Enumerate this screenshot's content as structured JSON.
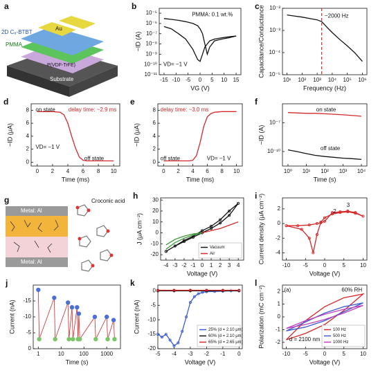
{
  "diagram_a": {
    "label": "a",
    "layers": [
      "2D C₈-BTBT",
      "Au",
      "PMMA",
      "P(VDF-TrFE)",
      "Substrate"
    ]
  },
  "diagram_g": {
    "label": "g",
    "electrodes": [
      "Metal: Al",
      "Metal: Al"
    ],
    "molecule": "Croconic acid"
  },
  "chart_data": [
    {
      "type": "line",
      "label": "b",
      "xlabel": "VG (V)",
      "ylabel": "−ID (A)",
      "ylog": true,
      "xlim": [
        -17,
        17
      ],
      "xticks": [
        -15,
        -10,
        -5,
        0,
        5,
        10,
        15
      ],
      "ylim": [
        1e-11,
        3e-05
      ],
      "yticks": [
        {
          "value": 1e-11,
          "label": "10⁻¹¹"
        },
        {
          "value": 1e-10,
          "label": "10⁻¹⁰"
        },
        {
          "value": 1e-09,
          "label": "10⁻⁹"
        },
        {
          "value": 1e-08,
          "label": "10⁻⁸"
        },
        {
          "value": 1e-07,
          "label": "10⁻⁷"
        },
        {
          "value": 1e-06,
          "label": "10⁻⁶"
        },
        {
          "value": 1e-05,
          "label": "10⁻⁵"
        }
      ],
      "series": [
        {
          "color": "#111111",
          "x": [
            -15,
            -12,
            -9,
            -6,
            -3,
            -1,
            0,
            1,
            2,
            3,
            4,
            6,
            9,
            12,
            15
          ],
          "values": [
            3e-06,
            2.5e-06,
            2e-06,
            1.5e-06,
            1e-06,
            6e-07,
            3e-07,
            1e-07,
            1e-08,
            1e-09,
            5e-09,
            2e-08,
            3e-08,
            4e-08,
            6e-08
          ]
        },
        {
          "color": "#111111",
          "x": [
            -15,
            -12,
            -9,
            -6,
            -3,
            -1,
            0,
            1,
            2,
            3,
            4,
            6,
            9,
            12,
            15
          ],
          "values": [
            5e-07,
            3e-07,
            1e-07,
            3e-08,
            3e-09,
            3e-10,
            2e-10,
            1e-09,
            5e-09,
            1e-08,
            2e-08,
            3e-08,
            4e-08,
            5e-08,
            6e-08
          ]
        }
      ],
      "annotations": [
        {
          "text": "PMMA: 0.1 wt.%",
          "color": "#111111"
        },
        {
          "text": "VD= −1 V",
          "color": "#111111"
        }
      ]
    },
    {
      "type": "line",
      "label": "c",
      "xlabel": "Frequency (Hz)",
      "ylabel": "Capacitance/Conductance",
      "xlog": true,
      "ylog": true,
      "xlim": [
        5,
        2000000.0
      ],
      "ylim": [
        1e-05,
        0.01
      ],
      "xticks": [
        {
          "value": 10,
          "label": "10¹"
        },
        {
          "value": 100,
          "label": "10²"
        },
        {
          "value": 1000,
          "label": "10³"
        },
        {
          "value": 10000,
          "label": "10⁴"
        },
        {
          "value": 100000,
          "label": "10⁵"
        },
        {
          "value": 1000000,
          "label": "10⁶"
        }
      ],
      "yticks": [
        {
          "value": 1e-05,
          "label": "10⁻⁵"
        },
        {
          "value": 0.0001,
          "label": "10⁻⁴"
        },
        {
          "value": 0.001,
          "label": "10⁻³"
        },
        {
          "value": 0.01,
          "label": "10⁻²"
        }
      ],
      "series": [
        {
          "color": "#111111",
          "x": [
            10,
            30,
            100,
            300,
            1000,
            2000,
            5000,
            10000,
            30000,
            100000,
            300000,
            1000000
          ],
          "values": [
            0.005,
            0.0045,
            0.004,
            0.0035,
            0.003,
            0.0025,
            0.0013,
            0.0008,
            0.0004,
            0.0002,
            0.0001,
            4e-05
          ]
        }
      ],
      "vline": {
        "x": 2000,
        "color": "#d62728"
      },
      "annotations": [
        {
          "text": "~2000 Hz",
          "color": "#111111"
        }
      ]
    },
    {
      "type": "line",
      "label": "d",
      "xlabel": "Time (ms)",
      "ylabel": "−ID (μA)",
      "xlim": [
        -0.8,
        10.8
      ],
      "xticks": [
        0,
        2,
        4,
        6,
        8,
        10
      ],
      "ylim": [
        -0.6,
        9
      ],
      "yticks": [
        0,
        2,
        4,
        6,
        8
      ],
      "series": [
        {
          "color": "#d62728",
          "x": [
            0,
            1,
            2,
            3,
            3.5,
            4,
            4.5,
            5,
            5.5,
            6,
            6.5,
            7,
            8,
            9,
            10
          ],
          "values": [
            7.8,
            7.8,
            7.8,
            7.7,
            7.3,
            6,
            4,
            2.2,
            0.8,
            0.3,
            0.2,
            0.2,
            0.2,
            0.2,
            0.2
          ]
        }
      ],
      "annotations": [
        {
          "text": "on state",
          "color": "#111111"
        },
        {
          "text": "delay time: ~2.9 ms",
          "color": "#d62728"
        },
        {
          "text": "off state",
          "color": "#111111"
        },
        {
          "text": "VD= −1 V",
          "color": "#111111"
        }
      ]
    },
    {
      "type": "line",
      "label": "e",
      "xlabel": "Time (ms)",
      "ylabel": "−ID (μA)",
      "xlim": [
        -0.8,
        10.8
      ],
      "xticks": [
        0,
        2,
        4,
        6,
        8,
        10
      ],
      "ylim": [
        -0.6,
        9
      ],
      "yticks": [
        0,
        2,
        4,
        6,
        8
      ],
      "series": [
        {
          "color": "#d62728",
          "x": [
            0,
            1,
            2,
            3,
            3.5,
            4,
            4.5,
            5,
            5.5,
            6,
            6.5,
            7,
            8,
            9,
            10
          ],
          "values": [
            0.2,
            0.2,
            0.2,
            0.2,
            0.2,
            0.3,
            1,
            3,
            5.5,
            7,
            7.5,
            7.7,
            7.8,
            7.8,
            7.8
          ]
        }
      ],
      "annotations": [
        {
          "text": "delay time: ~3.0 ms",
          "color": "#d62728"
        },
        {
          "text": "off state",
          "color": "#111111"
        },
        {
          "text": "VD= −1 V",
          "color": "#111111"
        }
      ]
    },
    {
      "type": "line",
      "label": "f",
      "xlabel": "Time (s)",
      "ylabel": "−ID (A)",
      "xlog": true,
      "ylog": true,
      "xlim": [
        0.5,
        20000
      ],
      "ylim": [
        3e-12,
        1e-05
      ],
      "xticks": [
        {
          "value": 1,
          "label": "10⁰"
        },
        {
          "value": 10,
          "label": "10¹"
        },
        {
          "value": 100,
          "label": "10²"
        },
        {
          "value": 1000,
          "label": "10³"
        },
        {
          "value": 10000,
          "label": "10⁴"
        }
      ],
      "yticks": [
        {
          "value": 1e-10,
          "label": "10⁻¹⁰"
        },
        {
          "value": 1e-07,
          "label": "10⁻⁷"
        }
      ],
      "series": [
        {
          "color": "#d62728",
          "x": [
            1,
            3,
            10,
            30,
            100,
            300,
            1000,
            3000,
            10000
          ],
          "values": [
            1.2e-06,
            1.1e-06,
            1e-06,
            1e-06,
            9e-07,
            8e-07,
            7e-07,
            6e-07,
            5e-07
          ]
        },
        {
          "color": "#111111",
          "x": [
            1,
            3,
            10,
            30,
            100,
            300,
            1000,
            3000,
            10000
          ],
          "values": [
            1.5e-10,
            1e-10,
            6e-11,
            4e-11,
            3e-11,
            2.5e-11,
            2e-11,
            1.8e-11,
            1.5e-11
          ]
        }
      ],
      "annotations": [
        {
          "text": "on state",
          "color": "#111111"
        },
        {
          "text": "off state",
          "color": "#111111"
        }
      ]
    },
    {
      "type": "line",
      "label": "h",
      "xlabel": "Voltage (V)",
      "ylabel": "J (μA cm⁻²)",
      "xlim": [
        -4.6,
        4.6
      ],
      "xticks": [
        -4,
        -3,
        -2,
        -1,
        0,
        1,
        2,
        3,
        4
      ],
      "ylim": [
        -25,
        32
      ],
      "yticks": [
        -20,
        -10,
        0,
        10,
        20,
        30
      ],
      "legend": "lower right",
      "series": [
        {
          "name": "Vacuum",
          "color": "#111111",
          "marker": "circle",
          "x": [
            -4,
            -3,
            -2,
            -1,
            0,
            1,
            2,
            3,
            4,
            3,
            2,
            1,
            0,
            -1,
            -2,
            -3,
            -4
          ],
          "values": [
            -17,
            -12,
            -8,
            -4,
            0,
            4,
            9,
            16,
            27,
            20,
            12,
            6,
            2,
            -3,
            -7,
            -12,
            -17
          ]
        },
        {
          "name": "Air",
          "color": "#d62728",
          "x": [
            -1,
            0,
            1,
            2,
            3,
            4
          ],
          "values": [
            -1,
            0,
            2,
            4,
            7,
            10
          ]
        },
        {
          "color": "#3a9a3a",
          "x": [
            -4,
            -3,
            -2,
            -1,
            0,
            -1,
            -2,
            -3,
            -4
          ],
          "values": [
            -15,
            -9,
            -5,
            -2,
            0,
            -1,
            -3,
            -6,
            -11
          ]
        }
      ]
    },
    {
      "type": "line",
      "label": "i",
      "xlabel": "Voltage (V)",
      "ylabel": "Current density (μA cm⁻²)",
      "xlim": [
        -11,
        11
      ],
      "xticks": [
        -10,
        -5,
        0,
        5,
        10
      ],
      "ylim": [
        -5,
        3.5
      ],
      "yticks": [
        -4,
        -2,
        0,
        2
      ],
      "series": [
        {
          "color": "#d62728",
          "marker": "circle",
          "x": [
            -10,
            -7,
            -4,
            -2,
            -1,
            0,
            2,
            4,
            6,
            8,
            10,
            8,
            6,
            4,
            2,
            0,
            -1,
            -2,
            -3,
            -4,
            -6,
            -10
          ],
          "values": [
            -0.3,
            -0.3,
            -0.2,
            0,
            0.1,
            0.3,
            1.5,
            1.6,
            1.7,
            1.5,
            1,
            1.4,
            1.6,
            1.5,
            1.3,
            0.8,
            0.2,
            -1.5,
            -4,
            -2,
            -0.8,
            -0.3
          ]
        }
      ],
      "annotations": [
        {
          "text": "2",
          "color": "#111111"
        },
        {
          "text": "3",
          "color": "#111111"
        }
      ]
    },
    {
      "type": "scatter",
      "label": "j",
      "xlabel": "Time (s)",
      "ylabel": "Current (nA)",
      "xlog": true,
      "xlim": [
        0.6,
        4000
      ],
      "xticks": [
        1,
        10,
        100,
        1000
      ],
      "ylim": [
        0,
        -20
      ],
      "yticks": [
        -15,
        -10,
        -5,
        0
      ],
      "series": [
        {
          "color": "#4a6fd8",
          "marker": "circle",
          "x": [
            1,
            5,
            20,
            30,
            50,
            60,
            300,
            1000,
            2000
          ],
          "values": [
            -18.5,
            -16,
            -14.5,
            -13,
            -13,
            -11,
            -10,
            -10,
            -9
          ]
        },
        {
          "color": "#7cc46a",
          "marker": "circle",
          "x": [
            1.1,
            5.5,
            22,
            33,
            55,
            66,
            330,
            1100,
            2200
          ],
          "values": [
            -3,
            -3,
            -3,
            -3,
            -3,
            -3,
            -3,
            -3,
            -3
          ]
        }
      ],
      "connector": {
        "color": "#d62728"
      }
    },
    {
      "type": "line",
      "label": "k",
      "xlabel": "Voltage (V)",
      "ylabel": "Current (nA)",
      "xlim": [
        -5,
        0.2
      ],
      "xticks": [
        -5,
        -4,
        -3,
        -2,
        -1,
        0
      ],
      "ylim": [
        -20,
        2
      ],
      "yticks": [
        -20,
        -15,
        -10,
        -5,
        0
      ],
      "legend": "lower right",
      "series": [
        {
          "name": "25% (d = 2.10 μm)",
          "color": "#3b5bd0",
          "marker": "circle",
          "x": [
            -5,
            -4.75,
            -4.5,
            -4.25,
            -4,
            -3.75,
            -3.5,
            -3.25,
            -3,
            -2.75,
            -2.5,
            -2.25,
            -2,
            -1.5,
            -1,
            -0.5,
            0
          ],
          "values": [
            -15,
            -16,
            -15,
            -17,
            -19,
            -18,
            -14,
            -9,
            -4,
            -2,
            -1,
            -0.5,
            -0.3,
            -0.2,
            -0.1,
            0,
            0
          ]
        },
        {
          "name": "60% (d = 2.10 μm)",
          "color": "#111111",
          "marker": "circle",
          "x": [
            -5,
            -4,
            -3,
            -2,
            -1,
            0
          ],
          "values": [
            0,
            0,
            0,
            0,
            0,
            0
          ]
        },
        {
          "name": "65% (d = 2.65 μm)",
          "color": "#d62728",
          "marker": "circle",
          "x": [
            -5,
            -4,
            -3,
            -2,
            -1,
            0
          ],
          "values": [
            0.2,
            0.2,
            0.2,
            0.2,
            0.2,
            0.2
          ]
        }
      ]
    },
    {
      "type": "line",
      "label": "l",
      "xlabel": "Voltage (V)",
      "ylabel": "Polarization (mC cm⁻²)",
      "xlim": [
        -11,
        11
      ],
      "xticks": [
        -10,
        -5,
        0,
        5,
        10
      ],
      "ylim": [
        -2.5,
        2.5
      ],
      "yticks": [
        -2,
        -1,
        0,
        1,
        2
      ],
      "legend": "lower right",
      "series": [
        {
          "name": "100 Hz",
          "color": "#d62728",
          "x": [
            -10,
            -5,
            0,
            5,
            10,
            5,
            0,
            -5,
            -10
          ],
          "values": [
            -1.8,
            -1.3,
            -0.6,
            0.5,
            1.8,
            1.5,
            0.8,
            -0.3,
            -1.8
          ]
        },
        {
          "name": "500 Hz",
          "color": "#3b5bd0",
          "x": [
            -10,
            -5,
            0,
            5,
            10,
            5,
            0,
            -5,
            -10
          ],
          "values": [
            -1.1,
            -0.8,
            -0.3,
            0.4,
            1.1,
            0.8,
            0.3,
            -0.4,
            -1.1
          ]
        },
        {
          "name": "1000 Hz",
          "color": "#c040c0",
          "x": [
            -10,
            -5,
            0,
            5,
            10,
            5,
            0,
            -5,
            -10
          ],
          "values": [
            -0.9,
            -0.6,
            -0.2,
            0.3,
            0.9,
            0.6,
            0.2,
            -0.3,
            -0.9
          ]
        }
      ],
      "annotations": [
        {
          "text": "(a)",
          "color": "#111111"
        },
        {
          "text": "60% RH",
          "color": "#111111"
        },
        {
          "text": "d = 2100 nm",
          "color": "#111111"
        }
      ]
    }
  ]
}
